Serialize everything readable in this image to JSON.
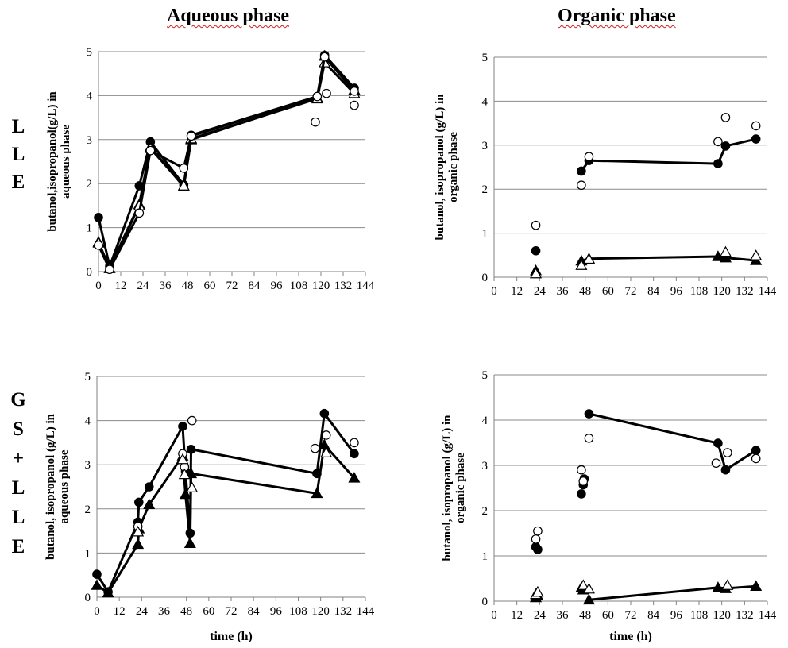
{
  "headings": {
    "aqueous": "Aqueous phase",
    "organic": "Organic phase"
  },
  "row_labels": {
    "row1": [
      "L",
      "L",
      "E"
    ],
    "row2": [
      "G",
      "S",
      "+",
      "L",
      "L",
      "E"
    ]
  },
  "marker_legend_note": "",
  "chart_data": [
    {
      "id": "lle-aqueous",
      "type": "scatter",
      "ylabel_lines": [
        "butanol,isopropanol(g/L) in",
        "aqueous phase"
      ],
      "xlabel": "",
      "xlim": [
        0,
        144
      ],
      "ylim": [
        0,
        5
      ],
      "xticks": [
        "0",
        "12",
        "24",
        "36",
        "48",
        "60",
        "72",
        "84",
        "96",
        "108",
        "120",
        "132",
        "144"
      ],
      "yticks": [
        "0",
        "1",
        "2",
        "3",
        "4",
        "5"
      ],
      "grid": true,
      "series": [
        {
          "marker": "filled-circle",
          "line": true,
          "x": [
            0,
            6,
            22,
            28,
            46,
            50,
            118,
            122,
            138
          ],
          "y": [
            1.23,
            0.12,
            1.95,
            2.95,
            1.97,
            3.1,
            3.98,
            4.92,
            4.17
          ]
        },
        {
          "marker": "filled-triangle",
          "line": true,
          "x": [
            0,
            6,
            22,
            28,
            46,
            50,
            118,
            122,
            138
          ],
          "y": [
            0.67,
            0.08,
            1.53,
            2.83,
            1.93,
            3.0,
            3.95,
            4.9,
            4.13
          ]
        },
        {
          "marker": "open-triangle",
          "line": true,
          "x": [
            0,
            6,
            22,
            28,
            46,
            50,
            118,
            122,
            138
          ],
          "y": [
            0.65,
            0.07,
            1.5,
            2.8,
            1.95,
            3.02,
            3.93,
            4.75,
            4.05
          ]
        },
        {
          "marker": "open-circle",
          "line": true,
          "x": [
            0,
            6,
            22,
            28,
            46,
            50,
            118,
            122,
            138
          ],
          "y": [
            0.6,
            0.05,
            1.33,
            2.75,
            2.35,
            3.08,
            3.98,
            4.88,
            4.1
          ]
        },
        {
          "marker": "open-circle",
          "line": false,
          "x": [
            117,
            123,
            138
          ],
          "y": [
            3.4,
            4.05,
            3.78
          ]
        }
      ]
    },
    {
      "id": "lle-organic",
      "type": "scatter",
      "ylabel_lines": [
        "butanol, isopropanol (g/L) in",
        "organic phase"
      ],
      "xlabel": "",
      "xlim": [
        0,
        144
      ],
      "ylim": [
        0,
        5
      ],
      "xticks": [
        "0",
        "12",
        "24",
        "36",
        "48",
        "60",
        "72",
        "84",
        "96",
        "108",
        "120",
        "132",
        "144"
      ],
      "yticks": [
        "0",
        "1",
        "2",
        "3",
        "4",
        "5"
      ],
      "grid": true,
      "series": [
        {
          "marker": "filled-circle",
          "line": false,
          "x": [
            22
          ],
          "y": [
            0.6
          ]
        },
        {
          "marker": "filled-circle",
          "line": true,
          "x": [
            46,
            50,
            118,
            122,
            138
          ],
          "y": [
            2.41,
            2.65,
            2.58,
            2.98,
            3.14
          ]
        },
        {
          "marker": "open-circle",
          "line": false,
          "x": [
            22,
            46,
            50,
            118,
            122,
            138
          ],
          "y": [
            1.18,
            2.09,
            2.74,
            3.08,
            3.63,
            3.44
          ]
        },
        {
          "marker": "filled-triangle",
          "line": false,
          "x": [
            22
          ],
          "y": [
            0.15
          ]
        },
        {
          "marker": "filled-triangle",
          "line": true,
          "x": [
            46,
            50,
            118,
            122,
            138
          ],
          "y": [
            0.37,
            0.42,
            0.47,
            0.44,
            0.38
          ]
        },
        {
          "marker": "open-triangle",
          "line": false,
          "x": [
            22,
            46,
            50,
            122,
            138
          ],
          "y": [
            0.08,
            0.27,
            0.41,
            0.57,
            0.49
          ]
        }
      ]
    },
    {
      "id": "gslle-aqueous",
      "type": "scatter",
      "ylabel_lines": [
        "butanol, isopropanol (g/L) in",
        "aqueous phase"
      ],
      "xlabel": "time (h)",
      "xlim": [
        0,
        144
      ],
      "ylim": [
        0,
        5
      ],
      "xticks": [
        "0",
        "12",
        "24",
        "36",
        "48",
        "60",
        "72",
        "84",
        "96",
        "108",
        "120",
        "132",
        "144"
      ],
      "yticks": [
        "0",
        "1",
        "2",
        "3",
        "4",
        "5"
      ],
      "grid": true,
      "series": [
        {
          "marker": "filled-circle",
          "line": true,
          "x": [
            0,
            6,
            22,
            22.5,
            28,
            46,
            47.5,
            50,
            50.5,
            118,
            122,
            138
          ],
          "y": [
            0.52,
            0.12,
            1.7,
            2.15,
            2.5,
            3.87,
            2.85,
            1.45,
            3.35,
            2.8,
            4.16,
            3.25
          ]
        },
        {
          "marker": "filled-triangle",
          "line": true,
          "x": [
            0,
            6,
            22,
            22.5,
            28,
            46,
            47.5,
            50,
            50.5,
            118,
            122,
            138
          ],
          "y": [
            0.27,
            0.1,
            1.2,
            1.55,
            2.1,
            3.2,
            2.33,
            1.22,
            2.8,
            2.35,
            3.45,
            2.7
          ]
        },
        {
          "marker": "open-circle",
          "line": false,
          "x": [
            22,
            46,
            47,
            51,
            117,
            123,
            138
          ],
          "y": [
            1.6,
            3.25,
            2.95,
            4.0,
            3.37,
            3.67,
            3.5
          ]
        },
        {
          "marker": "open-triangle",
          "line": false,
          "x": [
            22,
            46,
            47,
            51,
            123
          ],
          "y": [
            1.48,
            3.12,
            2.78,
            2.48,
            3.27
          ]
        }
      ]
    },
    {
      "id": "gslle-organic",
      "type": "scatter",
      "ylabel_lines": [
        "butanol, isopropanol (g/L) in",
        "organic phase"
      ],
      "xlabel": "time (h)",
      "xlim": [
        0,
        144
      ],
      "ylim": [
        0,
        5
      ],
      "xticks": [
        "0",
        "12",
        "24",
        "36",
        "48",
        "60",
        "72",
        "84",
        "96",
        "108",
        "120",
        "132",
        "144"
      ],
      "yticks": [
        "0",
        "1",
        "2",
        "3",
        "4",
        "5"
      ],
      "grid": true,
      "series": [
        {
          "marker": "filled-circle",
          "line": false,
          "x": [
            22,
            23,
            46,
            47,
            47.5
          ],
          "y": [
            1.2,
            1.14,
            2.37,
            2.57,
            2.7
          ]
        },
        {
          "marker": "filled-circle",
          "line": true,
          "x": [
            50,
            118,
            122,
            138
          ],
          "y": [
            4.14,
            3.49,
            2.9,
            3.33
          ]
        },
        {
          "marker": "open-circle",
          "line": false,
          "x": [
            22,
            23,
            46,
            47,
            50,
            117,
            123,
            138
          ],
          "y": [
            1.37,
            1.55,
            2.9,
            2.65,
            3.6,
            3.05,
            3.28,
            3.15
          ]
        },
        {
          "marker": "filled-triangle",
          "line": false,
          "x": [
            22,
            23,
            46,
            47
          ],
          "y": [
            0.08,
            0.12,
            0.3,
            0.25
          ]
        },
        {
          "marker": "filled-triangle",
          "line": true,
          "x": [
            50,
            118,
            122,
            138
          ],
          "y": [
            0.03,
            0.3,
            0.28,
            0.33
          ]
        },
        {
          "marker": "open-triangle",
          "line": false,
          "x": [
            22,
            23,
            47,
            50,
            123
          ],
          "y": [
            0.15,
            0.2,
            0.35,
            0.27,
            0.35
          ]
        }
      ]
    }
  ]
}
